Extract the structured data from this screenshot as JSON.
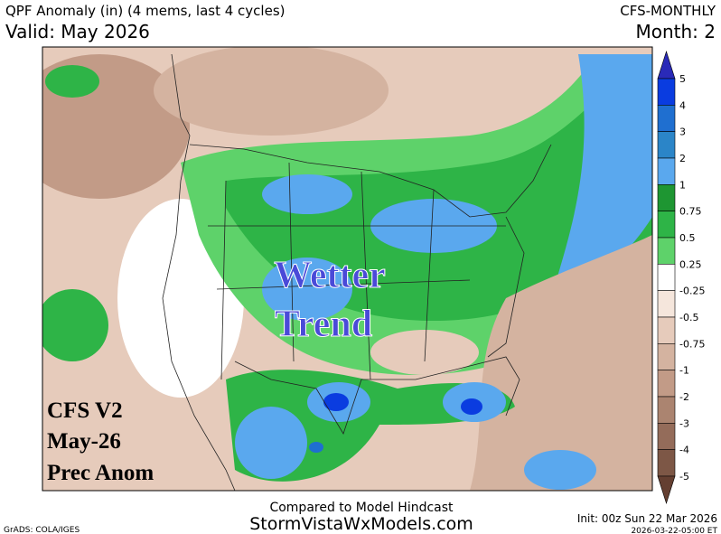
{
  "header": {
    "title": "QPF Anomaly (in) (4 mems, last 4 cycles)",
    "valid": "Valid: May 2026",
    "model": "CFS-MONTHLY",
    "month": "Month: 2"
  },
  "colorbar": {
    "labels": [
      "5",
      "4",
      "3",
      "2",
      "1",
      "0.75",
      "0.5",
      "0.25",
      "-0.25",
      "-0.5",
      "-0.75",
      "-1",
      "-2",
      "-3",
      "-4",
      "-5"
    ],
    "colors": [
      "#2a2ab8",
      "#0a3ce0",
      "#1f6fd0",
      "#2b85c8",
      "#5aa8ee",
      "#1e9632",
      "#2eb447",
      "#5ed26a",
      "#ffffff",
      "#f5e6dc",
      "#e6cbbb",
      "#d4b3a0",
      "#c29b87",
      "#ab8470",
      "#946c5a",
      "#7d5746",
      "#643f31"
    ]
  },
  "overlays": {
    "trend": [
      "Wetter",
      "Trend"
    ],
    "stamp": [
      "CFS V2",
      "May-26",
      "Prec Anom"
    ]
  },
  "footer": {
    "subtitle": "Compared to Model Hindcast",
    "site": "StormVistaWxModels.com",
    "credit": "GrADS: COLA/IGES",
    "init": "Init: 00z Sun 22 Mar 2026",
    "timestamp": "2026-03-22-05:00 ET"
  }
}
